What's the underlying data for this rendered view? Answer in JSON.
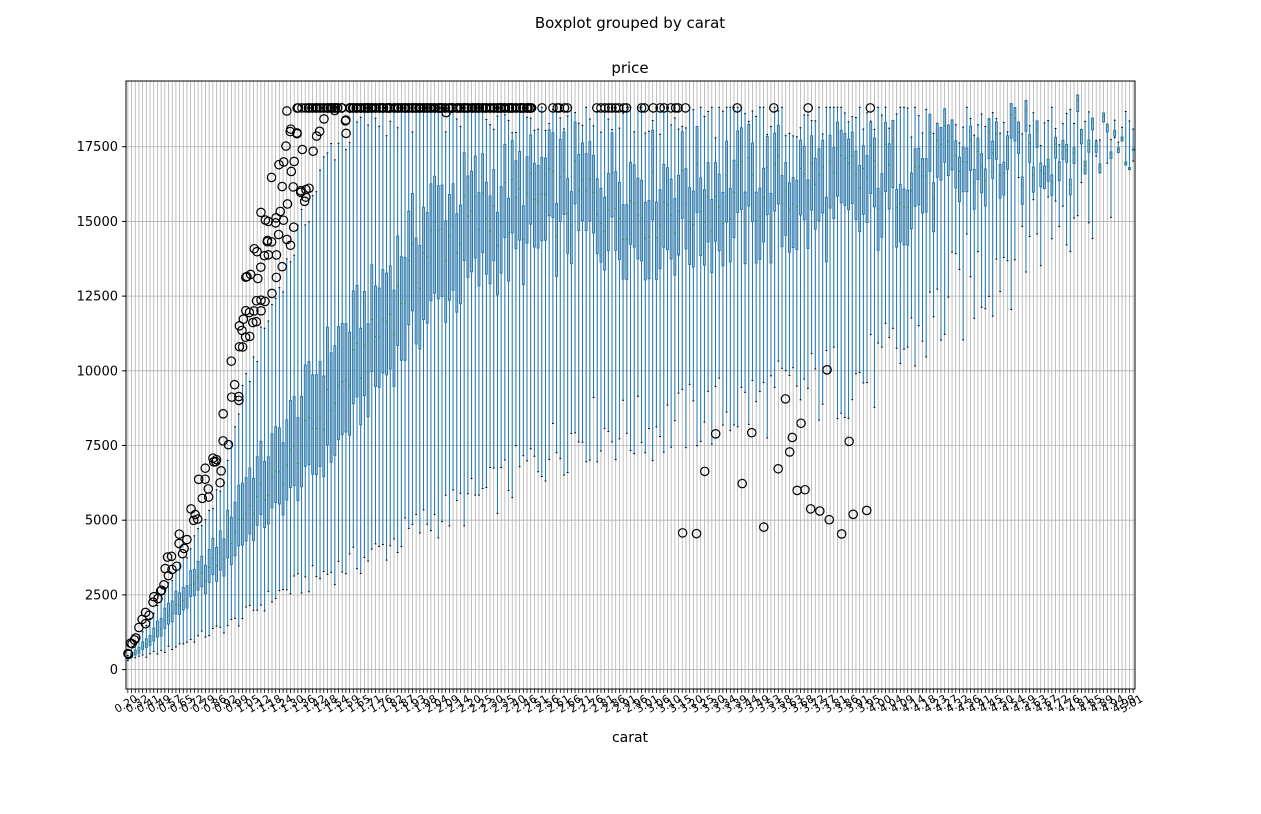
{
  "chart_data": {
    "type": "boxplot",
    "suptitle": "Boxplot grouped by carat",
    "title": "price",
    "xlabel": "carat",
    "ylabel": "",
    "ylim": [
      -650,
      19700
    ],
    "yticks": [
      0,
      2500,
      5000,
      7500,
      10000,
      12500,
      15000,
      17500
    ],
    "ytick_labels": [
      "0",
      "2500",
      "5000",
      "7500",
      "10000",
      "12500",
      "15000",
      "17500"
    ],
    "grid": true,
    "box_color": "#1f77b4",
    "median_color": "#2ca02c",
    "whisker_color": "#1f77b4",
    "flier_color": "#000000",
    "group_count": 273,
    "carat_range": [
      0.2,
      5.01
    ],
    "last_tick_label": "5.01",
    "trend_keypoints": [
      {
        "carat": 0.2,
        "q1": 345,
        "median": 365,
        "q3": 400,
        "whislo": 326,
        "whishi": 470
      },
      {
        "carat": 0.3,
        "q1": 520,
        "median": 600,
        "q3": 700,
        "whislo": 380,
        "whishi": 1050
      },
      {
        "carat": 0.4,
        "q1": 760,
        "median": 880,
        "q3": 1050,
        "whislo": 500,
        "whishi": 1550
      },
      {
        "carat": 0.5,
        "q1": 1250,
        "median": 1500,
        "q3": 1900,
        "whislo": 600,
        "whishi": 2500
      },
      {
        "carat": 0.7,
        "q1": 2300,
        "median": 2650,
        "q3": 3100,
        "whislo": 1000,
        "whishi": 4100
      },
      {
        "carat": 0.9,
        "q1": 3300,
        "median": 3900,
        "q3": 4600,
        "whislo": 1400,
        "whishi": 6300
      },
      {
        "carat": 1.0,
        "q1": 4200,
        "median": 5100,
        "q3": 6300,
        "whislo": 1700,
        "whishi": 9000
      },
      {
        "carat": 1.2,
        "q1": 5300,
        "median": 6300,
        "q3": 7700,
        "whislo": 2500,
        "whishi": 12500
      },
      {
        "carat": 1.5,
        "q1": 7200,
        "median": 9000,
        "q3": 11000,
        "whislo": 3300,
        "whishi": 17500
      },
      {
        "carat": 1.7,
        "q1": 9200,
        "median": 10800,
        "q3": 12500,
        "whislo": 3800,
        "whishi": 18500
      },
      {
        "carat": 2.0,
        "q1": 12000,
        "median": 14300,
        "q3": 15800,
        "whislo": 5000,
        "whishi": 18700
      },
      {
        "carat": 2.3,
        "q1": 13500,
        "median": 15300,
        "q3": 16500,
        "whislo": 6000,
        "whishi": 18700
      },
      {
        "carat": 2.7,
        "q1": 14500,
        "median": 15800,
        "q3": 17000,
        "whislo": 8000,
        "whishi": 18700
      },
      {
        "carat": 3.0,
        "q1": 14000,
        "median": 15500,
        "q3": 16800,
        "whislo": 8000,
        "whishi": 18500
      },
      {
        "carat": 4.0,
        "q1": 15000,
        "median": 16500,
        "q3": 17200,
        "whislo": 10000,
        "whishi": 18500
      },
      {
        "carat": 5.01,
        "q1": 18000,
        "median": 18018,
        "q3": 18040,
        "whislo": 18000,
        "whishi": 18040
      }
    ]
  }
}
